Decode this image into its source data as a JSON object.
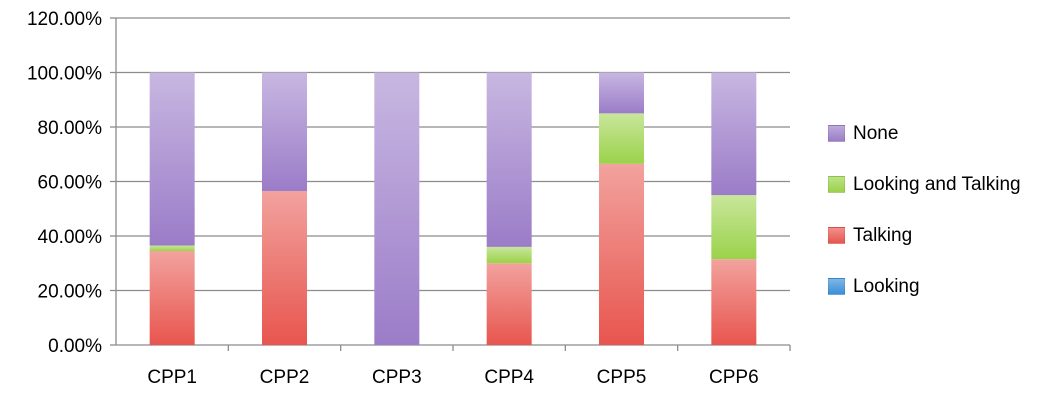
{
  "chart_data": {
    "type": "bar",
    "stacked": true,
    "categories": [
      "CPP1",
      "CPP2",
      "CPP3",
      "CPP4",
      "CPP5",
      "CPP6"
    ],
    "series": [
      {
        "name": "Looking",
        "values": [
          0.0,
          0.0,
          0.0,
          0.0,
          0.0,
          0.0
        ],
        "color": "#3A8FD9"
      },
      {
        "name": "Talking",
        "values": [
          34.5,
          56.5,
          0.0,
          30.0,
          66.5,
          31.5
        ],
        "color": "#E8554E"
      },
      {
        "name": "Looking and Talking",
        "values": [
          2.0,
          0.0,
          0.0,
          6.0,
          18.5,
          23.5
        ],
        "color": "#9BD24A"
      },
      {
        "name": "None",
        "values": [
          63.5,
          43.5,
          100.0,
          64.0,
          15.0,
          45.0
        ],
        "color": "#9B7CC8"
      }
    ],
    "y_ticks": [
      "0.00%",
      "20.00%",
      "40.00%",
      "60.00%",
      "80.00%",
      "100.00%",
      "120.00%"
    ],
    "ylim": [
      0,
      120
    ],
    "title": "",
    "xlabel": "",
    "ylabel": "",
    "legend_position": "right",
    "legend_order": [
      "None",
      "Looking and Talking",
      "Talking",
      "Looking"
    ],
    "grid": true
  }
}
